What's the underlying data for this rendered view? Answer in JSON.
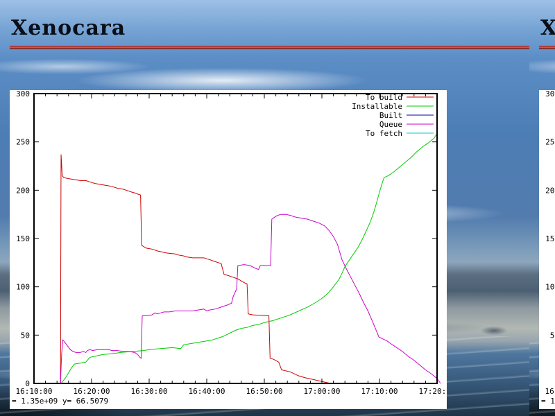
{
  "section": {
    "title": "Xenocara",
    "rule_color": "#d94f4f"
  },
  "chart_data": {
    "type": "line",
    "title": "",
    "xlabel": "",
    "ylabel": "",
    "grid": false,
    "legend_position": "top-right-inside",
    "ylim": [
      0,
      300
    ],
    "y_ticks": [
      0,
      50,
      100,
      150,
      200,
      250,
      300
    ],
    "x_tick_labels": [
      "16:10:00",
      "16:20:00",
      "16:30:00",
      "16:40:00",
      "16:50:00",
      "17:00:00",
      "17:10:00",
      "17:20:00"
    ],
    "x_minor_tick_minutes": 2,
    "x_unit": "minutes after 16:10:00",
    "mouse_readout": "=    1.35e+09 y=     66.5079",
    "series": [
      {
        "name": "To build",
        "color": "#cc0000",
        "points": [
          [
            4.6,
            0
          ],
          [
            4.7,
            237
          ],
          [
            4.9,
            215
          ],
          [
            5.2,
            213
          ],
          [
            6,
            212
          ],
          [
            7,
            211
          ],
          [
            8,
            210
          ],
          [
            9,
            210
          ],
          [
            10,
            208
          ],
          [
            10.6,
            207
          ],
          [
            11.5,
            206
          ],
          [
            12.5,
            205
          ],
          [
            13.5,
            204
          ],
          [
            14,
            203
          ],
          [
            14.5,
            202
          ],
          [
            15.5,
            201
          ],
          [
            16,
            200
          ],
          [
            16.5,
            199
          ],
          [
            17,
            198
          ],
          [
            17.6,
            197
          ],
          [
            18,
            196
          ],
          [
            18.5,
            195
          ],
          [
            18.7,
            143
          ],
          [
            19.5,
            140
          ],
          [
            20.5,
            139
          ],
          [
            21,
            138
          ],
          [
            21.5,
            137
          ],
          [
            22.3,
            136
          ],
          [
            23,
            135
          ],
          [
            24.5,
            134
          ],
          [
            25,
            133
          ],
          [
            26,
            132
          ],
          [
            26.5,
            131
          ],
          [
            27.5,
            130
          ],
          [
            29.5,
            130
          ],
          [
            30,
            129
          ],
          [
            30.6,
            128
          ],
          [
            31,
            127
          ],
          [
            31.5,
            126
          ],
          [
            32,
            125
          ],
          [
            32.5,
            124
          ],
          [
            33,
            113
          ],
          [
            33.5,
            112
          ],
          [
            34.5,
            110
          ],
          [
            35.5,
            108
          ],
          [
            36,
            106
          ],
          [
            36.6,
            104
          ],
          [
            37,
            103
          ],
          [
            37.2,
            72
          ],
          [
            38,
            71
          ],
          [
            40.8,
            70
          ],
          [
            41,
            26
          ],
          [
            41.6,
            25
          ],
          [
            42.5,
            22
          ],
          [
            43,
            14
          ],
          [
            44.5,
            12
          ],
          [
            45.9,
            8
          ],
          [
            47,
            6
          ],
          [
            48.5,
            4
          ],
          [
            50,
            2
          ],
          [
            51.5,
            0
          ],
          [
            53.5,
            0
          ]
        ]
      },
      {
        "name": "Installable",
        "color": "#00cc00",
        "points": [
          [
            4.7,
            0
          ],
          [
            5.5,
            6
          ],
          [
            6,
            11
          ],
          [
            6.5,
            16
          ],
          [
            7,
            20
          ],
          [
            8,
            21
          ],
          [
            9,
            22
          ],
          [
            9.7,
            27
          ],
          [
            10.5,
            28
          ],
          [
            12,
            30
          ],
          [
            14,
            31
          ],
          [
            15,
            32
          ],
          [
            17,
            33
          ],
          [
            19,
            34
          ],
          [
            20,
            35
          ],
          [
            22,
            36
          ],
          [
            24,
            37
          ],
          [
            25.5,
            36
          ],
          [
            26,
            40
          ],
          [
            27,
            41
          ],
          [
            28,
            42
          ],
          [
            29,
            43
          ],
          [
            30,
            44
          ],
          [
            31,
            45
          ],
          [
            32,
            47
          ],
          [
            33,
            49
          ],
          [
            34,
            52
          ],
          [
            35,
            55
          ],
          [
            36,
            57
          ],
          [
            37,
            58
          ],
          [
            38,
            60
          ],
          [
            39,
            61
          ],
          [
            40,
            63
          ],
          [
            41.5,
            65
          ],
          [
            43,
            68
          ],
          [
            44.5,
            71
          ],
          [
            46,
            75
          ],
          [
            47.5,
            79
          ],
          [
            49,
            84
          ],
          [
            50,
            88
          ],
          [
            51,
            93
          ],
          [
            52,
            100
          ],
          [
            53,
            108
          ],
          [
            53.5,
            114
          ],
          [
            54,
            121
          ],
          [
            54.8,
            128
          ],
          [
            55.5,
            134
          ],
          [
            56.3,
            141
          ],
          [
            57,
            149
          ],
          [
            57.7,
            158
          ],
          [
            58.4,
            167
          ],
          [
            59,
            177
          ],
          [
            59.5,
            187
          ],
          [
            60,
            198
          ],
          [
            60.5,
            208
          ],
          [
            60.8,
            213
          ],
          [
            61.5,
            215
          ],
          [
            62.5,
            219
          ],
          [
            63.5,
            224
          ],
          [
            64.5,
            229
          ],
          [
            65.5,
            234
          ],
          [
            66.5,
            240
          ],
          [
            67.5,
            245
          ],
          [
            68.5,
            249
          ],
          [
            69.5,
            254
          ],
          [
            70,
            259
          ]
        ]
      },
      {
        "name": "Built",
        "color": "#0000a0",
        "points": [
          [
            4.7,
            0
          ],
          [
            70,
            0
          ]
        ]
      },
      {
        "name": "Queue",
        "color": "#cc00cc",
        "points": [
          [
            4.6,
            0
          ],
          [
            4.8,
            30
          ],
          [
            5,
            45
          ],
          [
            5.3,
            43
          ],
          [
            5.8,
            39
          ],
          [
            6.3,
            35
          ],
          [
            6.8,
            33
          ],
          [
            7.3,
            32
          ],
          [
            8,
            32
          ],
          [
            8.6,
            33
          ],
          [
            9,
            32
          ],
          [
            9.3,
            34
          ],
          [
            9.7,
            35
          ],
          [
            10.2,
            34
          ],
          [
            11,
            35
          ],
          [
            12,
            35
          ],
          [
            13,
            35
          ],
          [
            13.5,
            34
          ],
          [
            14.5,
            34
          ],
          [
            15.5,
            33
          ],
          [
            16.5,
            33
          ],
          [
            17.5,
            32
          ],
          [
            18,
            30
          ],
          [
            18.4,
            27
          ],
          [
            18.6,
            26
          ],
          [
            18.8,
            70
          ],
          [
            19.5,
            70
          ],
          [
            20.5,
            71
          ],
          [
            21,
            73
          ],
          [
            21.4,
            72
          ],
          [
            22,
            73
          ],
          [
            22.6,
            74
          ],
          [
            23.5,
            74
          ],
          [
            24.5,
            75
          ],
          [
            26,
            75
          ],
          [
            27.5,
            75
          ],
          [
            28.5,
            76
          ],
          [
            29.5,
            77
          ],
          [
            30,
            75
          ],
          [
            30.5,
            76
          ],
          [
            31.5,
            77
          ],
          [
            32.5,
            79
          ],
          [
            33.5,
            81
          ],
          [
            34.3,
            83
          ],
          [
            34.6,
            90
          ],
          [
            34.9,
            94
          ],
          [
            35.2,
            98
          ],
          [
            35.4,
            122
          ],
          [
            36.5,
            123
          ],
          [
            37.5,
            122
          ],
          [
            38.5,
            119
          ],
          [
            39,
            118
          ],
          [
            39.3,
            122
          ],
          [
            40.5,
            122
          ],
          [
            41.1,
            122
          ],
          [
            41.3,
            170
          ],
          [
            42,
            173
          ],
          [
            42.8,
            175
          ],
          [
            43.8,
            175
          ],
          [
            44.5,
            174
          ],
          [
            45.5,
            172
          ],
          [
            46.5,
            171
          ],
          [
            47.5,
            170
          ],
          [
            48.5,
            168
          ],
          [
            49.5,
            166
          ],
          [
            50.5,
            163
          ],
          [
            51.3,
            158
          ],
          [
            52,
            152
          ],
          [
            52.7,
            144
          ],
          [
            53.5,
            128
          ],
          [
            54.3,
            118
          ],
          [
            55,
            110
          ],
          [
            55.8,
            101
          ],
          [
            56.5,
            93
          ],
          [
            57.3,
            83
          ],
          [
            58,
            75
          ],
          [
            58.8,
            64
          ],
          [
            59.5,
            54
          ],
          [
            59.9,
            48
          ],
          [
            60.6,
            46
          ],
          [
            61.3,
            44
          ],
          [
            62,
            41
          ],
          [
            63,
            37
          ],
          [
            64,
            33
          ],
          [
            65,
            28
          ],
          [
            66,
            24
          ],
          [
            67,
            19
          ],
          [
            68,
            14
          ],
          [
            69,
            10
          ],
          [
            70,
            5
          ],
          [
            70.6,
            0
          ]
        ]
      },
      {
        "name": "To fetch",
        "color": "#00cccc",
        "points": [
          [
            4.7,
            0
          ],
          [
            70,
            0
          ]
        ]
      }
    ]
  }
}
